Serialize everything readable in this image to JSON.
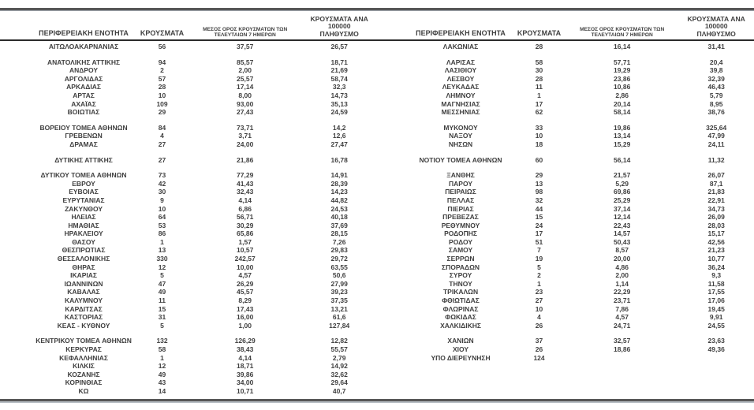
{
  "table": {
    "headers": {
      "region": "ΠΕΡΙΦΕΡΕΙΑΚΗ ΕΝΟΤΗΤΑ",
      "cases": "ΚΡΟΥΣΜΑΤΑ",
      "avg7_line1": "ΜΕΣΟΣ ΟΡΟΣ ΚΡΟΥΣΜΑΤΩΝ ΤΩΝ",
      "avg7_line2": "ΤΕΛΕΥΤΑΙΩΝ 7 ΗΜΕΡΩΝ",
      "per100k_line1": "ΚΡΟΥΣΜΑΤΑ ΑΝΑ 100000",
      "per100k_line2": "ΠΛΗΘΥΣΜΟ"
    },
    "columns": [
      "region",
      "cases",
      "avg_7_days",
      "cases_per_100000"
    ],
    "panels": {
      "left": {
        "groups": [
          [
            [
              "ΑΙΤΩΛΟΑΚΑΡΝΑΝΙΑΣ",
              "56",
              "37,57",
              "26,57"
            ]
          ],
          [
            [
              "ΑΝΑΤΟΛΙΚΗΣ ΑΤΤΙΚΗΣ",
              "94",
              "85,57",
              "18,71"
            ],
            [
              "ΑΝΔΡΟΥ",
              "2",
              "2,00",
              "21,69"
            ],
            [
              "ΑΡΓΟΛΙΔΑΣ",
              "57",
              "25,57",
              "58,74"
            ],
            [
              "ΑΡΚΑΔΙΑΣ",
              "28",
              "17,14",
              "32,3"
            ],
            [
              "ΑΡΤΑΣ",
              "10",
              "8,00",
              "14,73"
            ],
            [
              "ΑΧΑΪΑΣ",
              "109",
              "93,00",
              "35,13"
            ],
            [
              "ΒΟΙΩΤΙΑΣ",
              "29",
              "27,43",
              "24,59"
            ]
          ],
          [
            [
              "ΒΟΡΕΙΟΥ ΤΟΜΕΑ ΑΘΗΝΩΝ",
              "84",
              "73,71",
              "14,2"
            ],
            [
              "ΓΡΕΒΕΝΩΝ",
              "4",
              "3,71",
              "12,6"
            ],
            [
              "ΔΡΑΜΑΣ",
              "27",
              "24,00",
              "27,47"
            ]
          ],
          [
            [
              "ΔΥΤΙΚΗΣ ΑΤΤΙΚΗΣ",
              "27",
              "21,86",
              "16,78"
            ]
          ],
          [
            [
              "ΔΥΤΙΚΟΥ ΤΟΜΕΑ ΑΘΗΝΩΝ",
              "73",
              "77,29",
              "14,91"
            ],
            [
              "ΕΒΡΟΥ",
              "42",
              "41,43",
              "28,39"
            ],
            [
              "ΕΥΒΟΙΑΣ",
              "30",
              "32,43",
              "14,23"
            ],
            [
              "ΕΥΡΥΤΑΝΙΑΣ",
              "9",
              "4,14",
              "44,82"
            ],
            [
              "ΖΑΚΥΝΘΟΥ",
              "10",
              "6,86",
              "24,53"
            ],
            [
              "ΗΛΕΙΑΣ",
              "64",
              "56,71",
              "40,18"
            ],
            [
              "ΗΜΑΘΙΑΣ",
              "53",
              "30,29",
              "37,69"
            ],
            [
              "ΗΡΑΚΛΕΙΟΥ",
              "86",
              "65,86",
              "28,15"
            ],
            [
              "ΘΑΣΟΥ",
              "1",
              "1,57",
              "7,26"
            ],
            [
              "ΘΕΣΠΡΩΤΙΑΣ",
              "13",
              "10,57",
              "29,83"
            ],
            [
              "ΘΕΣΣΑΛΟΝΙΚΗΣ",
              "330",
              "242,57",
              "29,72"
            ],
            [
              "ΘΗΡΑΣ",
              "12",
              "10,00",
              "63,55"
            ],
            [
              "ΙΚΑΡΙΑΣ",
              "5",
              "4,57",
              "50,6"
            ],
            [
              "ΙΩΑΝΝΙΝΩΝ",
              "47",
              "26,29",
              "27,99"
            ],
            [
              "ΚΑΒΑΛΑΣ",
              "49",
              "45,57",
              "39,23"
            ],
            [
              "ΚΑΛΥΜΝΟΥ",
              "11",
              "8,29",
              "37,35"
            ],
            [
              "ΚΑΡΔΙΤΣΑΣ",
              "15",
              "17,43",
              "13,21"
            ],
            [
              "ΚΑΣΤΟΡΙΑΣ",
              "31",
              "16,00",
              "61,6"
            ],
            [
              "ΚΕΑΣ - ΚΥΘΝΟΥ",
              "5",
              "1,00",
              "127,84"
            ]
          ],
          [
            [
              "ΚΕΝΤΡΙΚΟΥ ΤΟΜΕΑ ΑΘΗΝΩΝ",
              "132",
              "126,29",
              "12,82"
            ],
            [
              "ΚΕΡΚΥΡΑΣ",
              "58",
              "38,43",
              "55,57"
            ],
            [
              "ΚΕΦΑΛΛΗΝΙΑΣ",
              "1",
              "4,14",
              "2,79"
            ],
            [
              "ΚΙΛΚΙΣ",
              "12",
              "18,71",
              "14,92"
            ],
            [
              "ΚΟΖΑΝΗΣ",
              "49",
              "39,86",
              "32,62"
            ],
            [
              "ΚΟΡΙΝΘΙΑΣ",
              "43",
              "34,00",
              "29,64"
            ],
            [
              "ΚΩ",
              "14",
              "10,71",
              "40,7"
            ]
          ]
        ]
      },
      "right": {
        "groups": [
          [
            [
              "ΛΑΚΩΝΙΑΣ",
              "28",
              "16,14",
              "31,41"
            ]
          ],
          [
            [
              "ΛΑΡΙΣΑΣ",
              "58",
              "57,71",
              "20,4"
            ],
            [
              "ΛΑΣΙΘΙΟΥ",
              "30",
              "19,29",
              "39,8"
            ],
            [
              "ΛΕΣΒΟΥ",
              "28",
              "23,86",
              "32,39"
            ],
            [
              "ΛΕΥΚΑΔΑΣ",
              "11",
              "10,86",
              "46,43"
            ],
            [
              "ΛΗΜΝΟΥ",
              "1",
              "2,86",
              "5,79"
            ],
            [
              "ΜΑΓΝΗΣΙΑΣ",
              "17",
              "20,14",
              "8,95"
            ],
            [
              "ΜΕΣΣΗΝΙΑΣ",
              "62",
              "58,14",
              "38,76"
            ]
          ],
          [
            [
              "ΜΥΚΟΝΟΥ",
              "33",
              "19,86",
              "325,64"
            ],
            [
              "ΝΑΞΟΥ",
              "10",
              "13,14",
              "47,99"
            ],
            [
              "ΝΗΣΩΝ",
              "18",
              "15,29",
              "24,11"
            ]
          ],
          [
            [
              "ΝΟΤΙΟΥ ΤΟΜΕΑ ΑΘΗΝΩΝ",
              "60",
              "56,14",
              "11,32"
            ]
          ],
          [
            [
              "ΞΑΝΘΗΣ",
              "29",
              "21,57",
              "26,07"
            ],
            [
              "ΠΑΡΟΥ",
              "13",
              "5,29",
              "87,1"
            ],
            [
              "ΠΕΙΡΑΙΩΣ",
              "98",
              "69,86",
              "21,83"
            ],
            [
              "ΠΕΛΛΑΣ",
              "32",
              "25,29",
              "22,91"
            ],
            [
              "ΠΙΕΡΙΑΣ",
              "44",
              "37,14",
              "34,73"
            ],
            [
              "ΠΡΕΒΕΖΑΣ",
              "15",
              "12,14",
              "26,09"
            ],
            [
              "ΡΕΘΥΜΝΟΥ",
              "24",
              "22,43",
              "28,03"
            ],
            [
              "ΡΟΔΟΠΗΣ",
              "17",
              "14,57",
              "15,17"
            ],
            [
              "ΡΟΔΟΥ",
              "51",
              "50,43",
              "42,56"
            ],
            [
              "ΣΑΜΟΥ",
              "7",
              "8,57",
              "21,23"
            ],
            [
              "ΣΕΡΡΩΝ",
              "19",
              "20,00",
              "10,77"
            ],
            [
              "ΣΠΟΡΑΔΩΝ",
              "5",
              "4,86",
              "36,24"
            ],
            [
              "ΣΥΡΟΥ",
              "2",
              "2,00",
              "9,3"
            ],
            [
              "ΤΗΝΟΥ",
              "1",
              "1,14",
              "11,58"
            ],
            [
              "ΤΡΙΚΑΛΩΝ",
              "23",
              "22,29",
              "17,55"
            ],
            [
              "ΦΘΙΩΤΙΔΑΣ",
              "27",
              "23,71",
              "17,06"
            ],
            [
              "ΦΛΩΡΙΝΑΣ",
              "10",
              "7,86",
              "19,45"
            ],
            [
              "ΦΩΚΙΔΑΣ",
              "4",
              "4,57",
              "9,91"
            ],
            [
              "ΧΑΛΚΙΔΙΚΗΣ",
              "26",
              "24,71",
              "24,55"
            ]
          ],
          [
            [
              "ΧΑΝΙΩΝ",
              "37",
              "32,57",
              "23,63"
            ],
            [
              "ΧΙΟΥ",
              "26",
              "18,86",
              "49,36"
            ],
            [
              "ΥΠΟ ΔΙΕΡΕΥΝΗΣΗ",
              "124",
              "",
              ""
            ]
          ]
        ]
      }
    },
    "colors": {
      "text": "#404040",
      "rule_dark": "#575757",
      "rule_black": "#2b2b2b",
      "rule_light": "#b6bdc3"
    }
  }
}
